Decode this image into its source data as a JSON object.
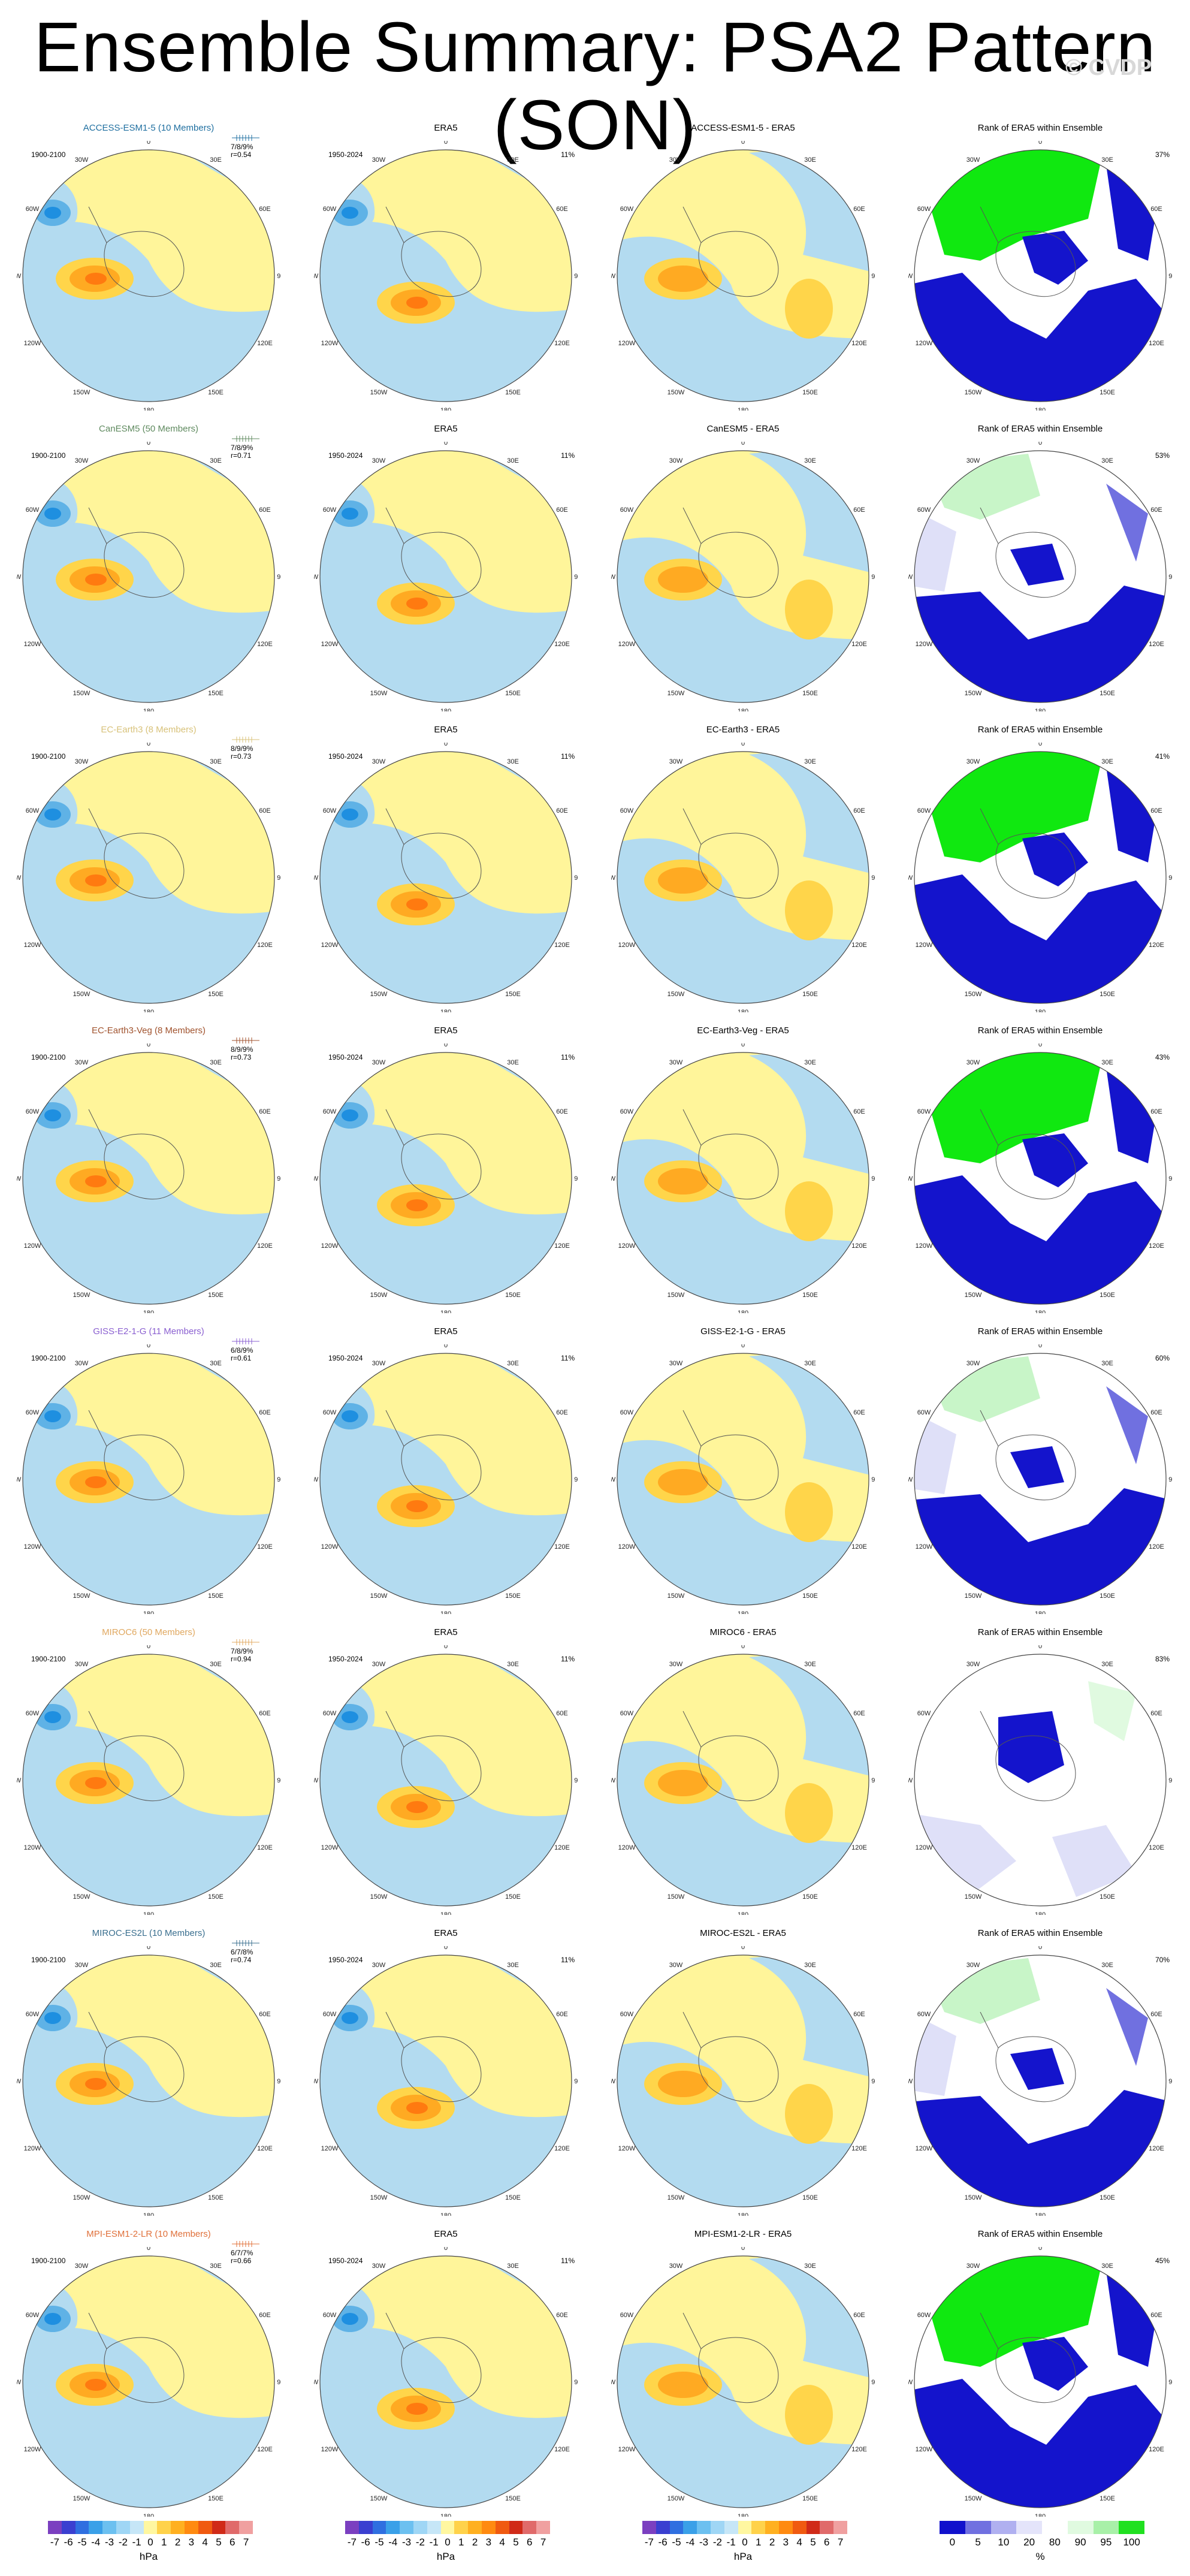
{
  "header": {
    "title": "Ensemble Summary: PSA2 Pattern (SON)",
    "watermark": "© CVDP"
  },
  "grid_labels": [
    "0",
    "30E",
    "60E",
    "90E",
    "120E",
    "150E",
    "180",
    "150W",
    "120W",
    "90W",
    "60W",
    "30W"
  ],
  "rows": [
    {
      "model": "ACCESS-ESM1-5 (10 Members)",
      "model_color": "#1f6fa0",
      "period": "1900-2100",
      "obs_period": "1950-2024",
      "obs_title": "ERA5",
      "diff_title": "ACCESS-ESM1-5 - ERA5",
      "rank_title": "Rank of ERA5 within Ensemble",
      "stat1": "7/8/9%",
      "stat2": "r=0.54",
      "obs_pct": "11%",
      "rank_pct": "37%",
      "rank_pattern": "high"
    },
    {
      "model": "CanESM5 (50 Members)",
      "model_color": "#5f8a5f",
      "period": "1900-2100",
      "obs_period": "1950-2024",
      "obs_title": "ERA5",
      "diff_title": "CanESM5 - ERA5",
      "rank_title": "Rank of ERA5 within Ensemble",
      "stat1": "7/8/9%",
      "stat2": "r=0.71",
      "obs_pct": "11%",
      "rank_pct": "53%",
      "rank_pattern": "mixed"
    },
    {
      "model": "EC-Earth3 (8 Members)",
      "model_color": "#d8c27a",
      "period": "1900-2100",
      "obs_period": "1950-2024",
      "obs_title": "ERA5",
      "diff_title": "EC-Earth3 - ERA5",
      "rank_title": "Rank of ERA5 within Ensemble",
      "stat1": "8/9/9%",
      "stat2": "r=0.73",
      "obs_pct": "11%",
      "rank_pct": "41%",
      "rank_pattern": "high"
    },
    {
      "model": "EC-Earth3-Veg (8 Members)",
      "model_color": "#a0522d",
      "period": "1900-2100",
      "obs_period": "1950-2024",
      "obs_title": "ERA5",
      "diff_title": "EC-Earth3-Veg - ERA5",
      "rank_title": "Rank of ERA5 within Ensemble",
      "stat1": "8/9/9%",
      "stat2": "r=0.73",
      "obs_pct": "11%",
      "rank_pct": "43%",
      "rank_pattern": "high"
    },
    {
      "model": "GISS-E2-1-G (11 Members)",
      "model_color": "#8a5fd0",
      "period": "1900-2100",
      "obs_period": "1950-2024",
      "obs_title": "ERA5",
      "diff_title": "GISS-E2-1-G - ERA5",
      "rank_title": "Rank of ERA5 within Ensemble",
      "stat1": "6/8/9%",
      "stat2": "r=0.61",
      "obs_pct": "11%",
      "rank_pct": "60%",
      "rank_pattern": "mixed"
    },
    {
      "model": "MIROC6 (50 Members)",
      "model_color": "#e0a860",
      "period": "1900-2100",
      "obs_period": "1950-2024",
      "obs_title": "ERA5",
      "diff_title": "MIROC6 - ERA5",
      "rank_title": "Rank of ERA5 within Ensemble",
      "stat1": "7/8/9%",
      "stat2": "r=0.94",
      "obs_pct": "11%",
      "rank_pct": "83%",
      "rank_pattern": "light"
    },
    {
      "model": "MIROC-ES2L (10 Members)",
      "model_color": "#3a6f8f",
      "period": "1900-2100",
      "obs_period": "1950-2024",
      "obs_title": "ERA5",
      "diff_title": "MIROC-ES2L - ERA5",
      "rank_title": "Rank of ERA5 within Ensemble",
      "stat1": "6/7/8%",
      "stat2": "r=0.74",
      "obs_pct": "11%",
      "rank_pct": "70%",
      "rank_pattern": "mixed"
    },
    {
      "model": "MPI-ESM1-2-LR (10 Members)",
      "model_color": "#e0703a",
      "period": "1900-2100",
      "obs_period": "1950-2024",
      "obs_title": "ERA5",
      "diff_title": "MPI-ESM1-2-LR - ERA5",
      "rank_title": "Rank of ERA5 within Ensemble",
      "stat1": "6/7/7%",
      "stat2": "r=0.66",
      "obs_pct": "11%",
      "rank_pct": "45%",
      "rank_pattern": "high"
    }
  ],
  "colorbars": {
    "hpa": {
      "ticks": [
        "-7",
        "-6",
        "-5",
        "-4",
        "-3",
        "-2",
        "-1",
        "0",
        "1",
        "2",
        "3",
        "4",
        "5",
        "6",
        "7"
      ],
      "unit": "hPa",
      "colors": [
        "#7b3fc0",
        "#3a3fd0",
        "#2f6fe0",
        "#3aa0e8",
        "#6cc0f0",
        "#9fd6f5",
        "#c6e6f7",
        "#fff7a0",
        "#ffd24a",
        "#ffb020",
        "#ff8a10",
        "#f05a10",
        "#d02a18",
        "#e06a6a",
        "#f0a0a0"
      ]
    },
    "rank": {
      "ticks": [
        "0",
        "5",
        "10",
        "20",
        "80",
        "90",
        "95",
        "100"
      ],
      "unit": "%",
      "colors": [
        "#1010cc",
        "#7070e0",
        "#b0b0f0",
        "#e4e4fa",
        "#ffffff",
        "#e0fae0",
        "#a8f0a8",
        "#20e020"
      ]
    }
  },
  "colors": {
    "blue_light": "#b3dbf0",
    "blue_mid": "#5fb2e6",
    "blue_dark": "#1e8fe0",
    "yellow": "#fff59a",
    "orange_light": "#ffd54a",
    "orange": "#ffaa22",
    "orange_dark": "#ff7a10",
    "rank_blue": "#1414cc",
    "rank_green": "#10e810",
    "rank_pale": "#dfe0f8"
  }
}
